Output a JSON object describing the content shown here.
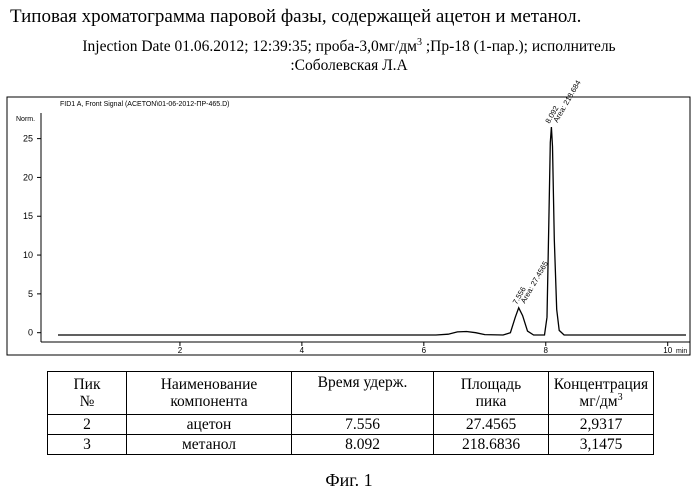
{
  "title": "Типовая хроматограмма паровой фазы, содержащей ацетон и метанол.",
  "injection": {
    "line1_main": "Injection Date 01.06.2012; 12:39:35; проба-3,0мг/дм",
    "line1_sup": "3",
    "line1_rest": " ;Пр-18 (1-пар.); исполнитель",
    "line2": ":Соболевская Л.А"
  },
  "chart_data": {
    "type": "line",
    "title": "FID1 A, Front Signal (ACETON\\01-06-2012-ПР-465.D)",
    "ylabel": "Norm.",
    "xlabel": "min",
    "xlim": [
      0,
      10.3
    ],
    "ylim": [
      -1.2,
      28.3
    ],
    "x_ticks": [
      2,
      4,
      6,
      8,
      10
    ],
    "y_ticks": [
      0,
      5,
      10,
      15,
      20,
      25
    ],
    "grid": false,
    "series": [
      {
        "points": [
          [
            0,
            -0.3
          ],
          [
            6.2,
            -0.3
          ],
          [
            6.4,
            -0.2
          ],
          [
            6.55,
            0.1
          ],
          [
            6.7,
            0.15
          ],
          [
            6.85,
            0.0
          ],
          [
            7.0,
            -0.25
          ],
          [
            7.3,
            -0.3
          ],
          [
            7.42,
            0.0
          ],
          [
            7.5,
            2.0
          ],
          [
            7.556,
            3.2
          ],
          [
            7.62,
            2.2
          ],
          [
            7.7,
            0.2
          ],
          [
            7.8,
            -0.3
          ],
          [
            7.98,
            -0.3
          ],
          [
            8.02,
            2.0
          ],
          [
            8.05,
            14.0
          ],
          [
            8.075,
            24.5
          ],
          [
            8.092,
            26.5
          ],
          [
            8.11,
            24.0
          ],
          [
            8.14,
            12.0
          ],
          [
            8.18,
            3.0
          ],
          [
            8.22,
            0.3
          ],
          [
            8.3,
            -0.3
          ],
          [
            10.3,
            -0.3
          ]
        ]
      }
    ],
    "annotations": [
      {
        "label": "7.556",
        "x": 7.556,
        "y": 3.2
      },
      {
        "label": "Area: 27.4565",
        "x": 7.556,
        "y": 3.2
      },
      {
        "label": "8.092",
        "x": 8.092,
        "y": 26.5
      },
      {
        "label": "Area: 218.684",
        "x": 8.092,
        "y": 26.5
      }
    ]
  },
  "table": {
    "headers": [
      {
        "line1": "Пик",
        "line2": "№"
      },
      {
        "line1": "Наименование",
        "line2": "компонента"
      },
      {
        "line1": "Время удерж.",
        "line2": ""
      },
      {
        "line1": "Площадь",
        "line2": "пика"
      },
      {
        "line1": "Концентрация",
        "line2": "мг/дм",
        "sup": "3"
      }
    ],
    "rows": [
      {
        "peak": "2",
        "name": "ацетон",
        "time": "7.556",
        "area": "27.4565",
        "conc": "2,9317"
      },
      {
        "peak": "3",
        "name": "метанол",
        "time": "8.092",
        "area": "218.6836",
        "conc": "3,1475"
      }
    ]
  },
  "caption": "Фиг. 1"
}
